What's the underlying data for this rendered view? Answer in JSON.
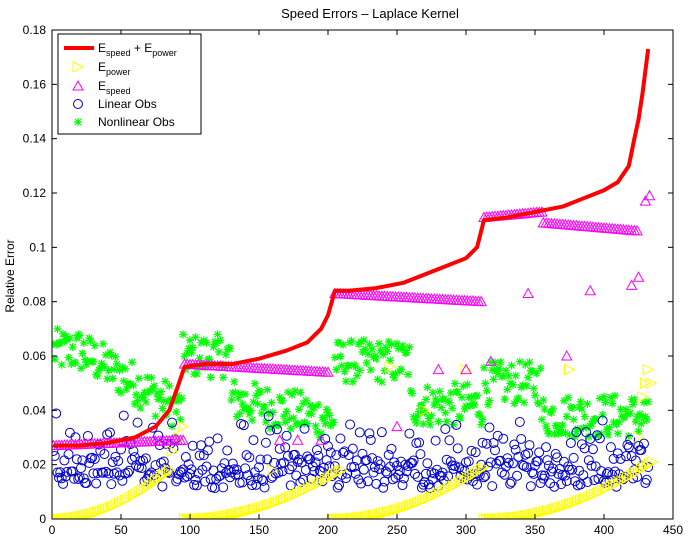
{
  "chart_data": {
    "type": "scatter",
    "title": "Speed Errors – Laplace Kernel",
    "xlabel": "",
    "ylabel": "Relative Error",
    "xlim": [
      0,
      450
    ],
    "ylim": [
      0,
      0.18
    ],
    "xticks": [
      "0",
      "50",
      "100",
      "150",
      "200",
      "250",
      "300",
      "350",
      "400",
      "450"
    ],
    "yticks": [
      "0",
      "0.02",
      "0.04",
      "0.06",
      "0.08",
      "0.1",
      "0.12",
      "0.14",
      "0.16",
      "0.18"
    ],
    "grid": false,
    "legend_position": "top-left",
    "series": [
      {
        "name": "E_speed + E_power",
        "legend_main_1": "E",
        "legend_sub_1": "speed",
        "legend_mid": " + E",
        "legend_sub_2": "power",
        "style": "line",
        "color": "#ff0000",
        "points": [
          [
            1,
            0.027
          ],
          [
            20,
            0.027
          ],
          [
            40,
            0.028
          ],
          [
            60,
            0.03
          ],
          [
            75,
            0.034
          ],
          [
            85,
            0.04
          ],
          [
            92,
            0.05
          ],
          [
            96,
            0.056
          ],
          [
            110,
            0.057
          ],
          [
            130,
            0.057
          ],
          [
            150,
            0.059
          ],
          [
            170,
            0.062
          ],
          [
            185,
            0.065
          ],
          [
            195,
            0.07
          ],
          [
            200,
            0.075
          ],
          [
            205,
            0.084
          ],
          [
            215,
            0.084
          ],
          [
            235,
            0.085
          ],
          [
            255,
            0.087
          ],
          [
            270,
            0.09
          ],
          [
            285,
            0.093
          ],
          [
            300,
            0.096
          ],
          [
            308,
            0.1
          ],
          [
            313,
            0.11
          ],
          [
            330,
            0.111
          ],
          [
            350,
            0.113
          ],
          [
            370,
            0.115
          ],
          [
            385,
            0.118
          ],
          [
            400,
            0.121
          ],
          [
            410,
            0.124
          ],
          [
            418,
            0.13
          ],
          [
            422,
            0.14
          ],
          [
            425,
            0.147
          ],
          [
            428,
            0.157
          ],
          [
            430,
            0.165
          ],
          [
            432,
            0.173
          ]
        ]
      },
      {
        "name": "E_power",
        "legend_main_1": "E",
        "legend_sub_1": "power",
        "style": "triangle-right",
        "color": "#ffff00",
        "segments": [
          [
            1,
            85,
            0.0,
            0.018
          ],
          [
            96,
            210,
            0.0,
            0.018
          ],
          [
            203,
            313,
            0.0,
            0.019
          ],
          [
            313,
            435,
            0.0,
            0.021
          ]
        ],
        "extra": [
          [
            87,
            0.025
          ],
          [
            92,
            0.03
          ],
          [
            95,
            0.034
          ],
          [
            160,
            0.018
          ],
          [
            245,
            0.056
          ],
          [
            270,
            0.04
          ],
          [
            300,
            0.055
          ],
          [
            375,
            0.055
          ],
          [
            425,
            0.03
          ],
          [
            428,
            0.045
          ],
          [
            430,
            0.05
          ],
          [
            432,
            0.055
          ],
          [
            434,
            0.05
          ]
        ]
      },
      {
        "name": "E_speed",
        "legend_main_1": "E",
        "legend_sub_1": "speed",
        "style": "triangle-up",
        "color": "#ff00ff",
        "segments": [
          [
            1,
            95,
            0.027,
            0.029
          ],
          [
            96,
            200,
            0.057,
            0.054
          ],
          [
            205,
            312,
            0.083,
            0.08
          ],
          [
            313,
            355,
            0.111,
            0.113
          ],
          [
            356,
            425,
            0.109,
            0.106
          ]
        ],
        "extra": [
          [
            165,
            0.029
          ],
          [
            178,
            0.029
          ],
          [
            195,
            0.029
          ],
          [
            250,
            0.034
          ],
          [
            280,
            0.055
          ],
          [
            300,
            0.055
          ],
          [
            318,
            0.058
          ],
          [
            345,
            0.083
          ],
          [
            373,
            0.06
          ],
          [
            390,
            0.084
          ],
          [
            420,
            0.086
          ],
          [
            425,
            0.089
          ],
          [
            430,
            0.117
          ],
          [
            433,
            0.119
          ]
        ]
      },
      {
        "name": "Linear Obs",
        "legend_main_1": "Linear Obs",
        "style": "circle",
        "color": "#0000cc",
        "band": [
          0.01,
          0.033
        ]
      },
      {
        "name": "Nonlinear Obs",
        "legend_main_1": "Nonlinear Obs",
        "style": "star",
        "color": "#00ff00",
        "band": [
          0.03,
          0.07
        ]
      }
    ]
  }
}
